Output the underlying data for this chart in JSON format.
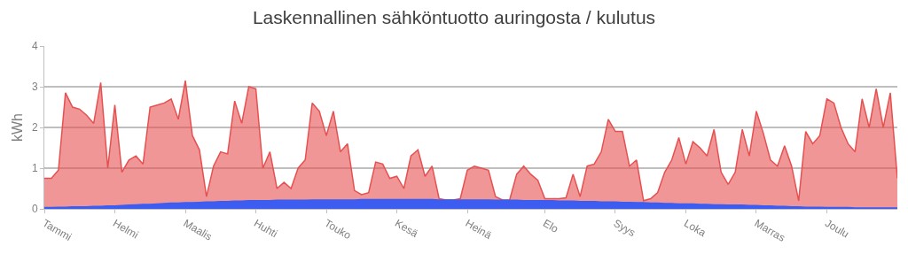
{
  "chart_data": {
    "type": "area",
    "title": "Laskennallinen sähköntuotto auringosta / kulutus",
    "ylabel": "kWh",
    "categories": [
      "Tammi",
      null,
      null,
      null,
      null,
      null,
      null,
      null,
      null,
      null,
      "Helmi",
      null,
      null,
      null,
      null,
      null,
      null,
      null,
      null,
      null,
      "Maalis",
      null,
      null,
      null,
      null,
      null,
      null,
      null,
      null,
      null,
      "Huhti",
      null,
      null,
      null,
      null,
      null,
      null,
      null,
      null,
      null,
      "Touko",
      null,
      null,
      null,
      null,
      null,
      null,
      null,
      null,
      null,
      "Kesä",
      null,
      null,
      null,
      null,
      null,
      null,
      null,
      null,
      null,
      "Heinä",
      null,
      null,
      null,
      null,
      null,
      null,
      null,
      null,
      null,
      null,
      "Elo",
      null,
      null,
      null,
      null,
      null,
      null,
      null,
      null,
      null,
      "Syys",
      null,
      null,
      null,
      null,
      null,
      null,
      null,
      null,
      null,
      "Loka",
      null,
      null,
      null,
      null,
      null,
      null,
      null,
      null,
      null,
      "Marras",
      null,
      null,
      null,
      null,
      null,
      null,
      null,
      null,
      null,
      "Joulu",
      null,
      null,
      null,
      null,
      null,
      null,
      null,
      null,
      null,
      null
    ],
    "series": [
      {
        "color": "#e65050",
        "values": [
          0.75,
          0.75,
          0.95,
          2.85,
          2.5,
          2.45,
          2.3,
          2.1,
          3.1,
          1.0,
          2.55,
          0.9,
          1.2,
          1.3,
          1.1,
          2.5,
          2.55,
          2.6,
          2.7,
          2.2,
          3.15,
          1.8,
          1.45,
          0.3,
          1.05,
          1.4,
          1.35,
          2.65,
          2.1,
          3.0,
          2.95,
          1.0,
          1.4,
          0.5,
          0.65,
          0.5,
          1.0,
          1.2,
          2.6,
          2.4,
          1.8,
          2.4,
          1.4,
          1.6,
          0.45,
          0.35,
          0.4,
          1.15,
          1.1,
          0.75,
          0.8,
          0.5,
          1.3,
          1.45,
          0.8,
          1.05,
          0.25,
          0.22,
          0.22,
          0.25,
          0.95,
          1.05,
          1.0,
          0.95,
          0.3,
          0.22,
          0.22,
          0.85,
          1.05,
          0.85,
          0.7,
          0.25,
          0.25,
          0.25,
          0.27,
          0.85,
          0.3,
          1.05,
          1.1,
          1.4,
          2.2,
          1.9,
          1.9,
          1.05,
          1.2,
          0.2,
          0.25,
          0.4,
          0.9,
          1.2,
          1.75,
          1.1,
          1.65,
          1.5,
          1.3,
          1.95,
          0.9,
          0.6,
          0.9,
          1.95,
          1.3,
          2.4,
          1.85,
          1.2,
          1.05,
          1.55,
          1.05,
          0.2,
          1.9,
          1.6,
          1.8,
          2.7,
          2.6,
          2.0,
          1.6,
          1.4,
          2.7,
          2.0,
          2.95,
          2.0,
          2.85,
          0.75
        ]
      },
      {
        "color": "#3d5cf0",
        "values": [
          0.03,
          0.03,
          0.04,
          0.04,
          0.05,
          0.05,
          0.05,
          0.06,
          0.06,
          0.07,
          0.07,
          0.08,
          0.09,
          0.1,
          0.11,
          0.11,
          0.12,
          0.13,
          0.14,
          0.14,
          0.15,
          0.15,
          0.16,
          0.17,
          0.17,
          0.18,
          0.18,
          0.19,
          0.19,
          0.2,
          0.2,
          0.2,
          0.2,
          0.21,
          0.21,
          0.21,
          0.21,
          0.21,
          0.22,
          0.22,
          0.22,
          0.22,
          0.22,
          0.22,
          0.22,
          0.23,
          0.23,
          0.23,
          0.23,
          0.23,
          0.23,
          0.23,
          0.23,
          0.23,
          0.23,
          0.23,
          0.22,
          0.22,
          0.22,
          0.22,
          0.22,
          0.22,
          0.22,
          0.22,
          0.21,
          0.21,
          0.21,
          0.21,
          0.2,
          0.2,
          0.2,
          0.2,
          0.2,
          0.19,
          0.19,
          0.19,
          0.18,
          0.18,
          0.18,
          0.17,
          0.17,
          0.17,
          0.16,
          0.16,
          0.15,
          0.15,
          0.14,
          0.14,
          0.13,
          0.13,
          0.12,
          0.12,
          0.12,
          0.11,
          0.11,
          0.1,
          0.1,
          0.09,
          0.09,
          0.09,
          0.08,
          0.08,
          0.07,
          0.07,
          0.06,
          0.06,
          0.05,
          0.05,
          0.04,
          0.04,
          0.04,
          0.03,
          0.03,
          0.03,
          0.03,
          0.02,
          0.02,
          0.02,
          0.02,
          0.02,
          0.02,
          0.02
        ]
      }
    ],
    "ylim": [
      0,
      4
    ],
    "yticks": [
      0,
      1,
      2,
      3,
      4
    ],
    "grid": "y"
  }
}
